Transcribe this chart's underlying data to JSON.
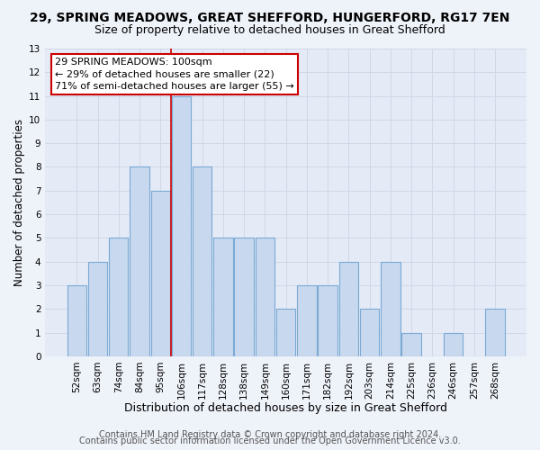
{
  "title": "29, SPRING MEADOWS, GREAT SHEFFORD, HUNGERFORD, RG17 7EN",
  "subtitle": "Size of property relative to detached houses in Great Shefford",
  "xlabel": "Distribution of detached houses by size in Great Shefford",
  "ylabel": "Number of detached properties",
  "bar_labels": [
    "52sqm",
    "63sqm",
    "74sqm",
    "84sqm",
    "95sqm",
    "106sqm",
    "117sqm",
    "128sqm",
    "138sqm",
    "149sqm",
    "160sqm",
    "171sqm",
    "182sqm",
    "192sqm",
    "203sqm",
    "214sqm",
    "225sqm",
    "236sqm",
    "246sqm",
    "257sqm",
    "268sqm"
  ],
  "bar_values": [
    3,
    4,
    5,
    8,
    7,
    11,
    8,
    5,
    5,
    5,
    2,
    3,
    3,
    4,
    2,
    4,
    1,
    0,
    1,
    0,
    2
  ],
  "bar_color": "#c8d8ee",
  "bar_edge_color": "#7aaad4",
  "highlight_line_color": "#cc0000",
  "annotation_title": "29 SPRING MEADOWS: 100sqm",
  "annotation_line1": "← 29% of detached houses are smaller (22)",
  "annotation_line2": "71% of semi-detached houses are larger (55) →",
  "annotation_box_facecolor": "#ffffff",
  "annotation_box_edgecolor": "#cc0000",
  "ylim": [
    0,
    13
  ],
  "yticks": [
    0,
    1,
    2,
    3,
    4,
    5,
    6,
    7,
    8,
    9,
    10,
    11,
    12,
    13
  ],
  "footer1": "Contains HM Land Registry data © Crown copyright and database right 2024.",
  "footer2": "Contains public sector information licensed under the Open Government Licence v3.0.",
  "bg_color": "#eef2f9",
  "plot_bg_color": "#e4eaf6",
  "grid_color": "#d0d8e8",
  "title_fontsize": 10,
  "subtitle_fontsize": 9,
  "xlabel_fontsize": 9,
  "ylabel_fontsize": 8.5,
  "tick_fontsize": 7.5,
  "annotation_fontsize": 8,
  "footer_fontsize": 7
}
